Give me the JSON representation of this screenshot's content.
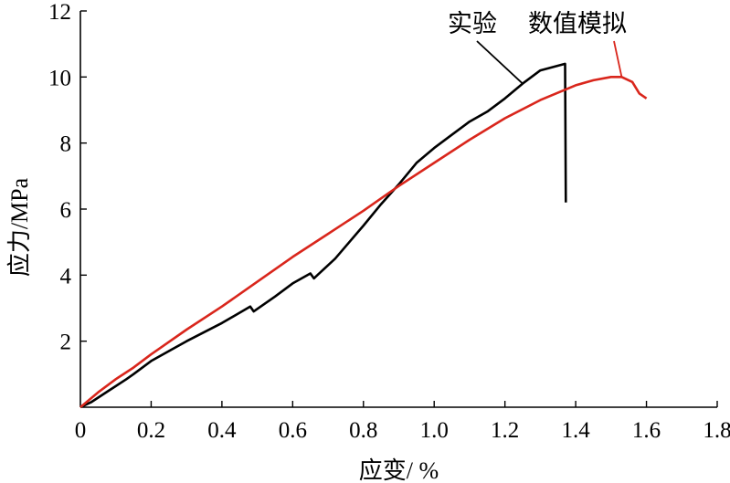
{
  "chart_data": {
    "type": "line",
    "xlabel": "应变/ %",
    "ylabel": "应力/MPa",
    "xlim": [
      0,
      1.8
    ],
    "ylim": [
      0,
      12
    ],
    "x_ticks": [
      "0",
      "0.2",
      "0.4",
      "0.6",
      "0.8",
      "1.0",
      "1.2",
      "1.4",
      "1.6",
      "1.8"
    ],
    "y_ticks": [
      "2",
      "4",
      "6",
      "8",
      "10",
      "12"
    ],
    "grid": false,
    "legend": "none",
    "series": [
      {
        "color": "#000000",
        "x": [
          0,
          0.03,
          0.08,
          0.13,
          0.15,
          0.2,
          0.3,
          0.4,
          0.48,
          0.49,
          0.55,
          0.6,
          0.65,
          0.66,
          0.67,
          0.72,
          0.76,
          0.8,
          0.85,
          0.9,
          0.95,
          1.0,
          1.05,
          1.1,
          1.15,
          1.2,
          1.25,
          1.3,
          1.37,
          1.372
        ],
        "y": [
          0,
          0.15,
          0.5,
          0.85,
          1.0,
          1.4,
          2.0,
          2.55,
          3.05,
          2.9,
          3.35,
          3.75,
          4.05,
          3.9,
          4.0,
          4.5,
          5.0,
          5.5,
          6.15,
          6.75,
          7.4,
          7.85,
          8.25,
          8.65,
          8.95,
          9.35,
          9.8,
          10.2,
          10.4,
          6.2
        ]
      },
      {
        "color": "#d9261c",
        "x": [
          0,
          0.05,
          0.1,
          0.15,
          0.2,
          0.3,
          0.4,
          0.5,
          0.6,
          0.7,
          0.8,
          0.9,
          1.0,
          1.1,
          1.2,
          1.3,
          1.4,
          1.45,
          1.5,
          1.53,
          1.56,
          1.58,
          1.6
        ],
        "y": [
          0,
          0.45,
          0.85,
          1.2,
          1.6,
          2.35,
          3.05,
          3.8,
          4.55,
          5.25,
          5.95,
          6.7,
          7.4,
          8.1,
          8.75,
          9.3,
          9.75,
          9.9,
          10.0,
          10.0,
          9.85,
          9.5,
          9.35
        ]
      }
    ],
    "annotations": [
      {
        "text": "实验",
        "target": 0
      },
      {
        "text": "数值模拟",
        "target": 1
      }
    ]
  }
}
